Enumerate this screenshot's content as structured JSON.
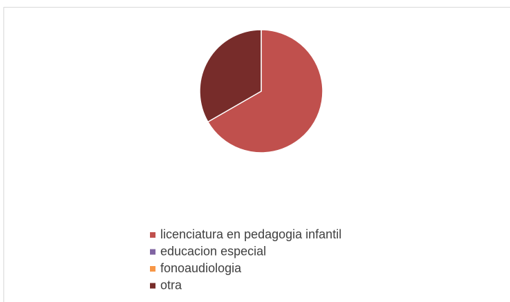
{
  "chart_data": {
    "type": "pie",
    "categories": [
      "licenciatura en pedagogia infantil",
      "educacion especial",
      "fonoaudiologia",
      "otra"
    ],
    "values": [
      66.7,
      0,
      0,
      33.3
    ],
    "colors": [
      "#c0504d",
      "#8064a2",
      "#f79646",
      "#772c2a"
    ],
    "legend": "bottom"
  }
}
